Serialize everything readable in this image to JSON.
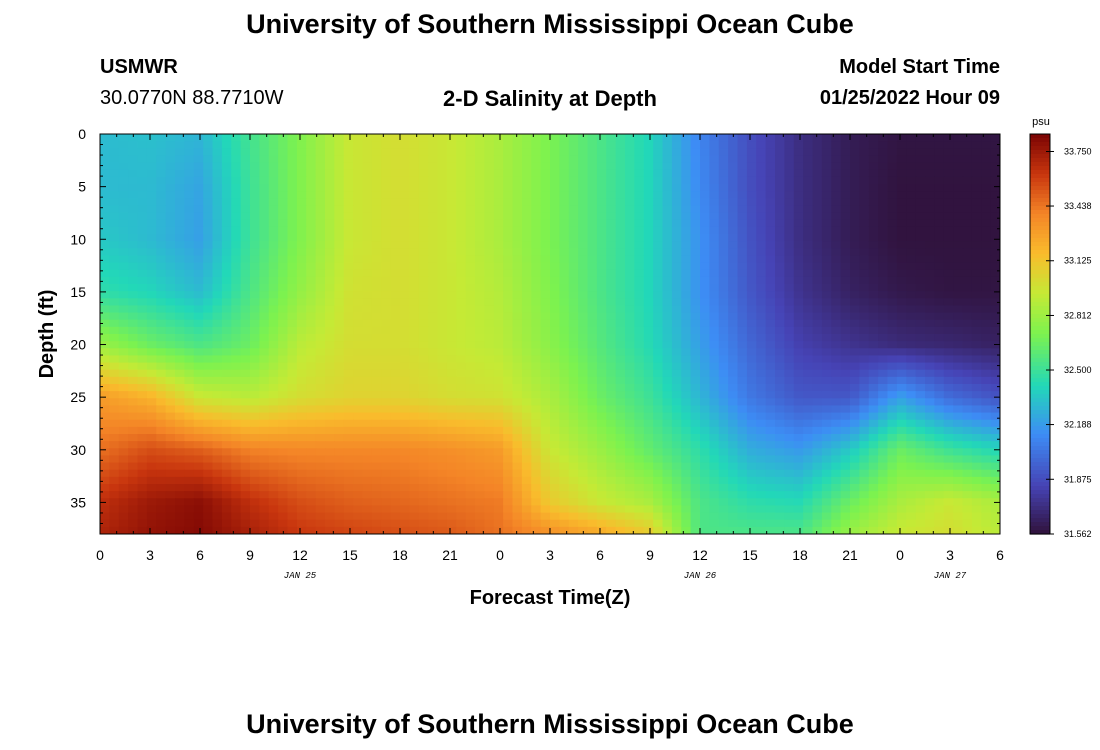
{
  "header": {
    "title": "University of Southern Mississippi Ocean Cube",
    "station_name": "USMWR",
    "station_coords": "30.0770N  88.7710W",
    "plot_title": "2-D Salinity at Depth",
    "model_start_label": "Model Start Time",
    "model_start_value": "01/25/2022 Hour 09"
  },
  "footer": {
    "title": "University of Southern Mississippi Ocean Cube"
  },
  "chart_data": {
    "type": "heatmap",
    "title": "2-D Salinity at Depth",
    "xlabel": "Forecast Time(Z)",
    "ylabel": "Depth (ft)",
    "x_hours": [
      0,
      3,
      6,
      9,
      12,
      15,
      18,
      21,
      24,
      27,
      30,
      33,
      36,
      39,
      42,
      45,
      48,
      51,
      54
    ],
    "x_tick_labels": [
      "0",
      "3",
      "6",
      "9",
      "12",
      "15",
      "18",
      "21",
      "0",
      "3",
      "6",
      "9",
      "12",
      "15",
      "18",
      "21",
      "0",
      "3",
      "6"
    ],
    "date_labels": [
      {
        "hour": 12,
        "text": "JAN 25"
      },
      {
        "hour": 36,
        "text": "JAN 26"
      },
      {
        "hour": 51,
        "text": "JAN 27"
      }
    ],
    "xlim": [
      0,
      54
    ],
    "ylim": [
      0,
      38
    ],
    "y_inverted": true,
    "y_ticks": [
      0,
      5,
      10,
      15,
      20,
      25,
      30,
      35
    ],
    "depths": [
      0,
      5,
      10,
      15,
      20,
      25,
      30,
      35,
      38
    ],
    "values": [
      [
        32.3,
        32.32,
        32.28,
        32.52,
        32.72,
        32.95,
        33.0,
        32.95,
        32.85,
        32.7,
        32.55,
        32.4,
        32.1,
        31.88,
        31.72,
        31.62,
        31.58,
        31.58,
        31.58
      ],
      [
        32.3,
        32.3,
        32.22,
        32.5,
        32.72,
        32.95,
        33.0,
        32.95,
        32.85,
        32.7,
        32.55,
        32.4,
        32.12,
        31.88,
        31.72,
        31.62,
        31.57,
        31.57,
        31.57
      ],
      [
        32.35,
        32.3,
        32.2,
        32.5,
        32.72,
        32.95,
        33.0,
        32.95,
        32.85,
        32.7,
        32.55,
        32.4,
        32.15,
        31.9,
        31.72,
        31.62,
        31.57,
        31.57,
        31.57
      ],
      [
        32.45,
        32.4,
        32.3,
        32.55,
        32.78,
        32.98,
        33.0,
        32.95,
        32.88,
        32.72,
        32.55,
        32.4,
        32.15,
        31.92,
        31.75,
        31.65,
        31.6,
        31.58,
        31.58
      ],
      [
        32.8,
        32.65,
        32.55,
        32.65,
        32.9,
        33.0,
        33.0,
        32.95,
        32.9,
        32.75,
        32.58,
        32.42,
        32.2,
        31.98,
        31.82,
        31.75,
        31.7,
        31.68,
        31.65
      ],
      [
        33.3,
        33.2,
        32.95,
        32.9,
        33.0,
        33.05,
        33.05,
        33.0,
        32.98,
        32.85,
        32.65,
        32.5,
        32.28,
        32.05,
        31.92,
        31.92,
        32.2,
        32.0,
        31.9
      ],
      [
        33.45,
        33.55,
        33.5,
        33.4,
        33.38,
        33.38,
        33.38,
        33.35,
        33.3,
        32.95,
        32.8,
        32.62,
        32.45,
        32.25,
        32.18,
        32.35,
        32.65,
        32.5,
        32.4
      ],
      [
        33.65,
        33.75,
        33.8,
        33.65,
        33.55,
        33.5,
        33.48,
        33.45,
        33.42,
        33.1,
        32.95,
        32.85,
        32.55,
        32.45,
        32.42,
        32.65,
        32.85,
        32.95,
        32.85
      ],
      [
        33.7,
        33.78,
        33.82,
        33.72,
        33.62,
        33.58,
        33.55,
        33.52,
        33.45,
        33.35,
        33.25,
        33.1,
        32.55,
        32.55,
        32.55,
        32.8,
        32.95,
        33.0,
        32.9
      ]
    ],
    "colorbar": {
      "label": "psu",
      "ticks": [
        "33.750",
        "33.438",
        "33.125",
        "32.812",
        "32.500",
        "32.188",
        "31.875",
        "31.562"
      ],
      "min": 31.562,
      "max": 33.85
    }
  }
}
